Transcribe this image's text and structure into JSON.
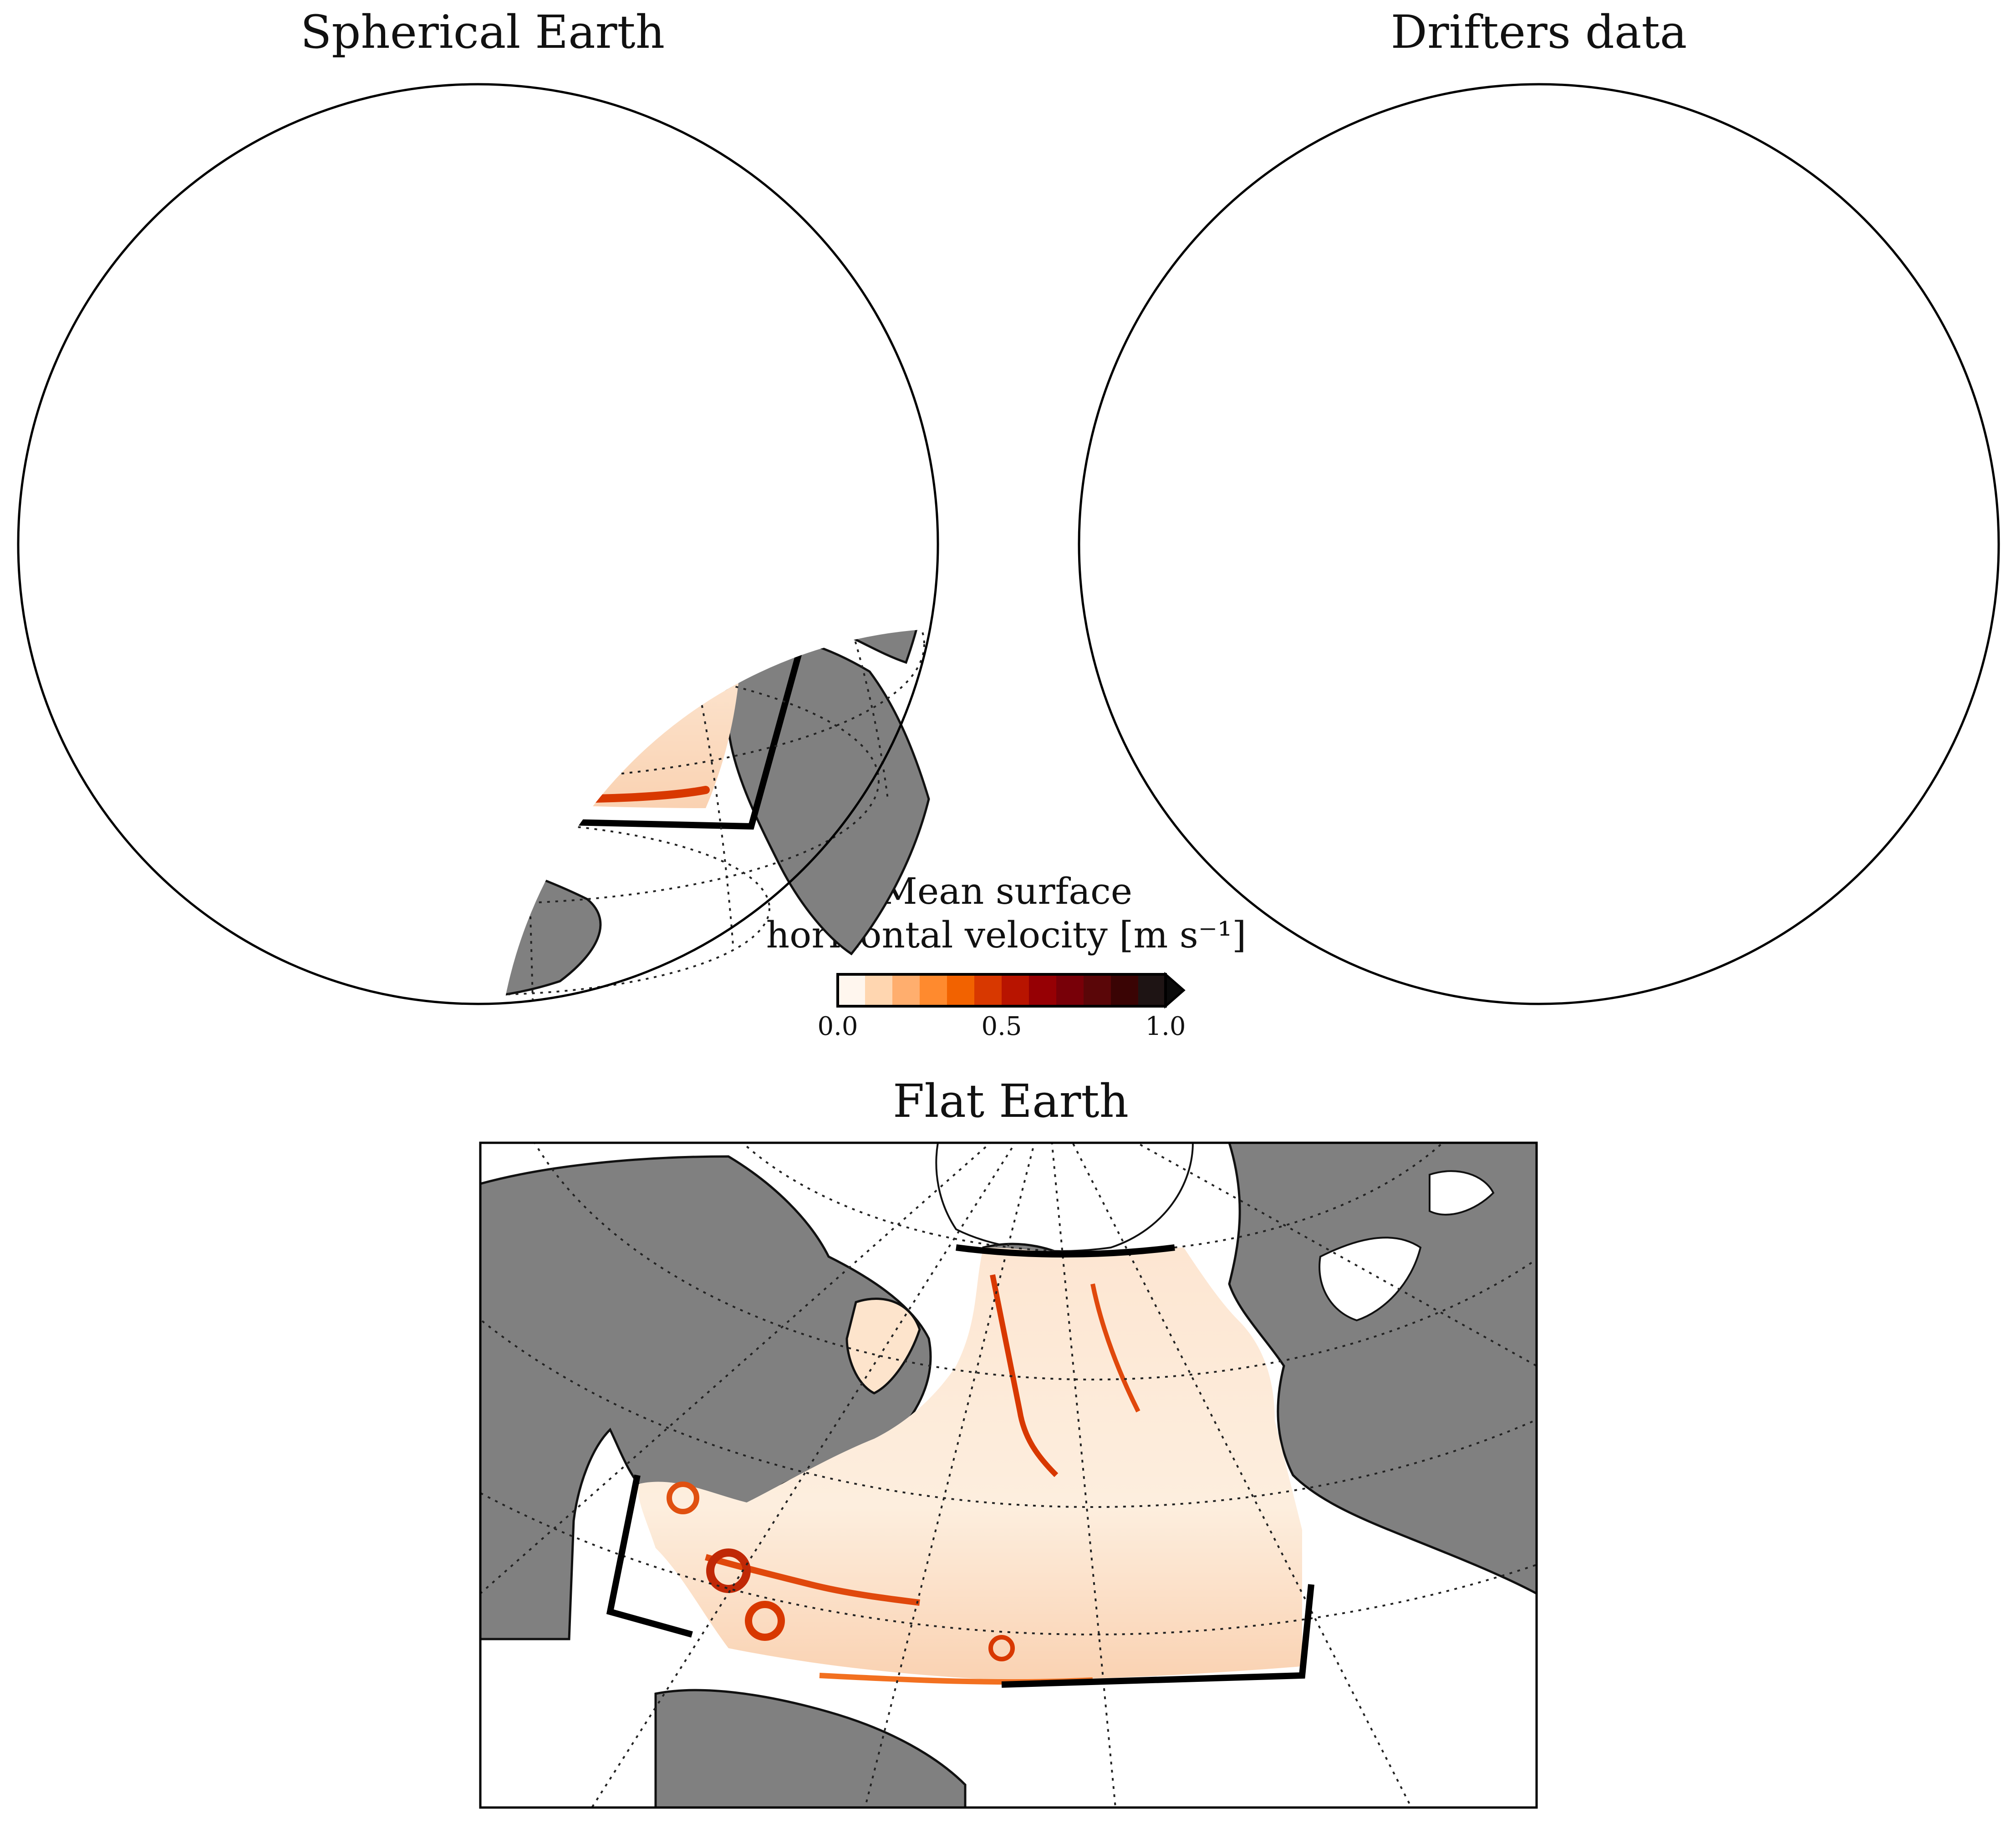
{
  "panels": [
    {
      "id": "spherical",
      "title": "Spherical Earth"
    },
    {
      "id": "drifters",
      "title": "Drifters data"
    },
    {
      "id": "flat",
      "title": "Flat Earth"
    }
  ],
  "colorbar": {
    "title_line1": "Mean surface",
    "title_line2": "horizontal velocity [m s⁻¹]",
    "ticks": [
      "0.0",
      "0.5",
      "1.0"
    ],
    "range": [
      0.0,
      1.0
    ],
    "extend": "max",
    "colors": [
      "#fff6ee",
      "#ffd6b0",
      "#ffae6e",
      "#ff8a2e",
      "#f26200",
      "#d83800",
      "#b81400",
      "#960004",
      "#780008",
      "#5a0608",
      "#3a0404",
      "#1e1414",
      "#0a0a0a"
    ]
  },
  "map_colors": {
    "land": "#808080",
    "ocean": "#ffffff",
    "field_light": "#fde4cc",
    "field_mid": "#f6a064",
    "field_strong": "#e0480c",
    "field_peak": "#a01006"
  }
}
